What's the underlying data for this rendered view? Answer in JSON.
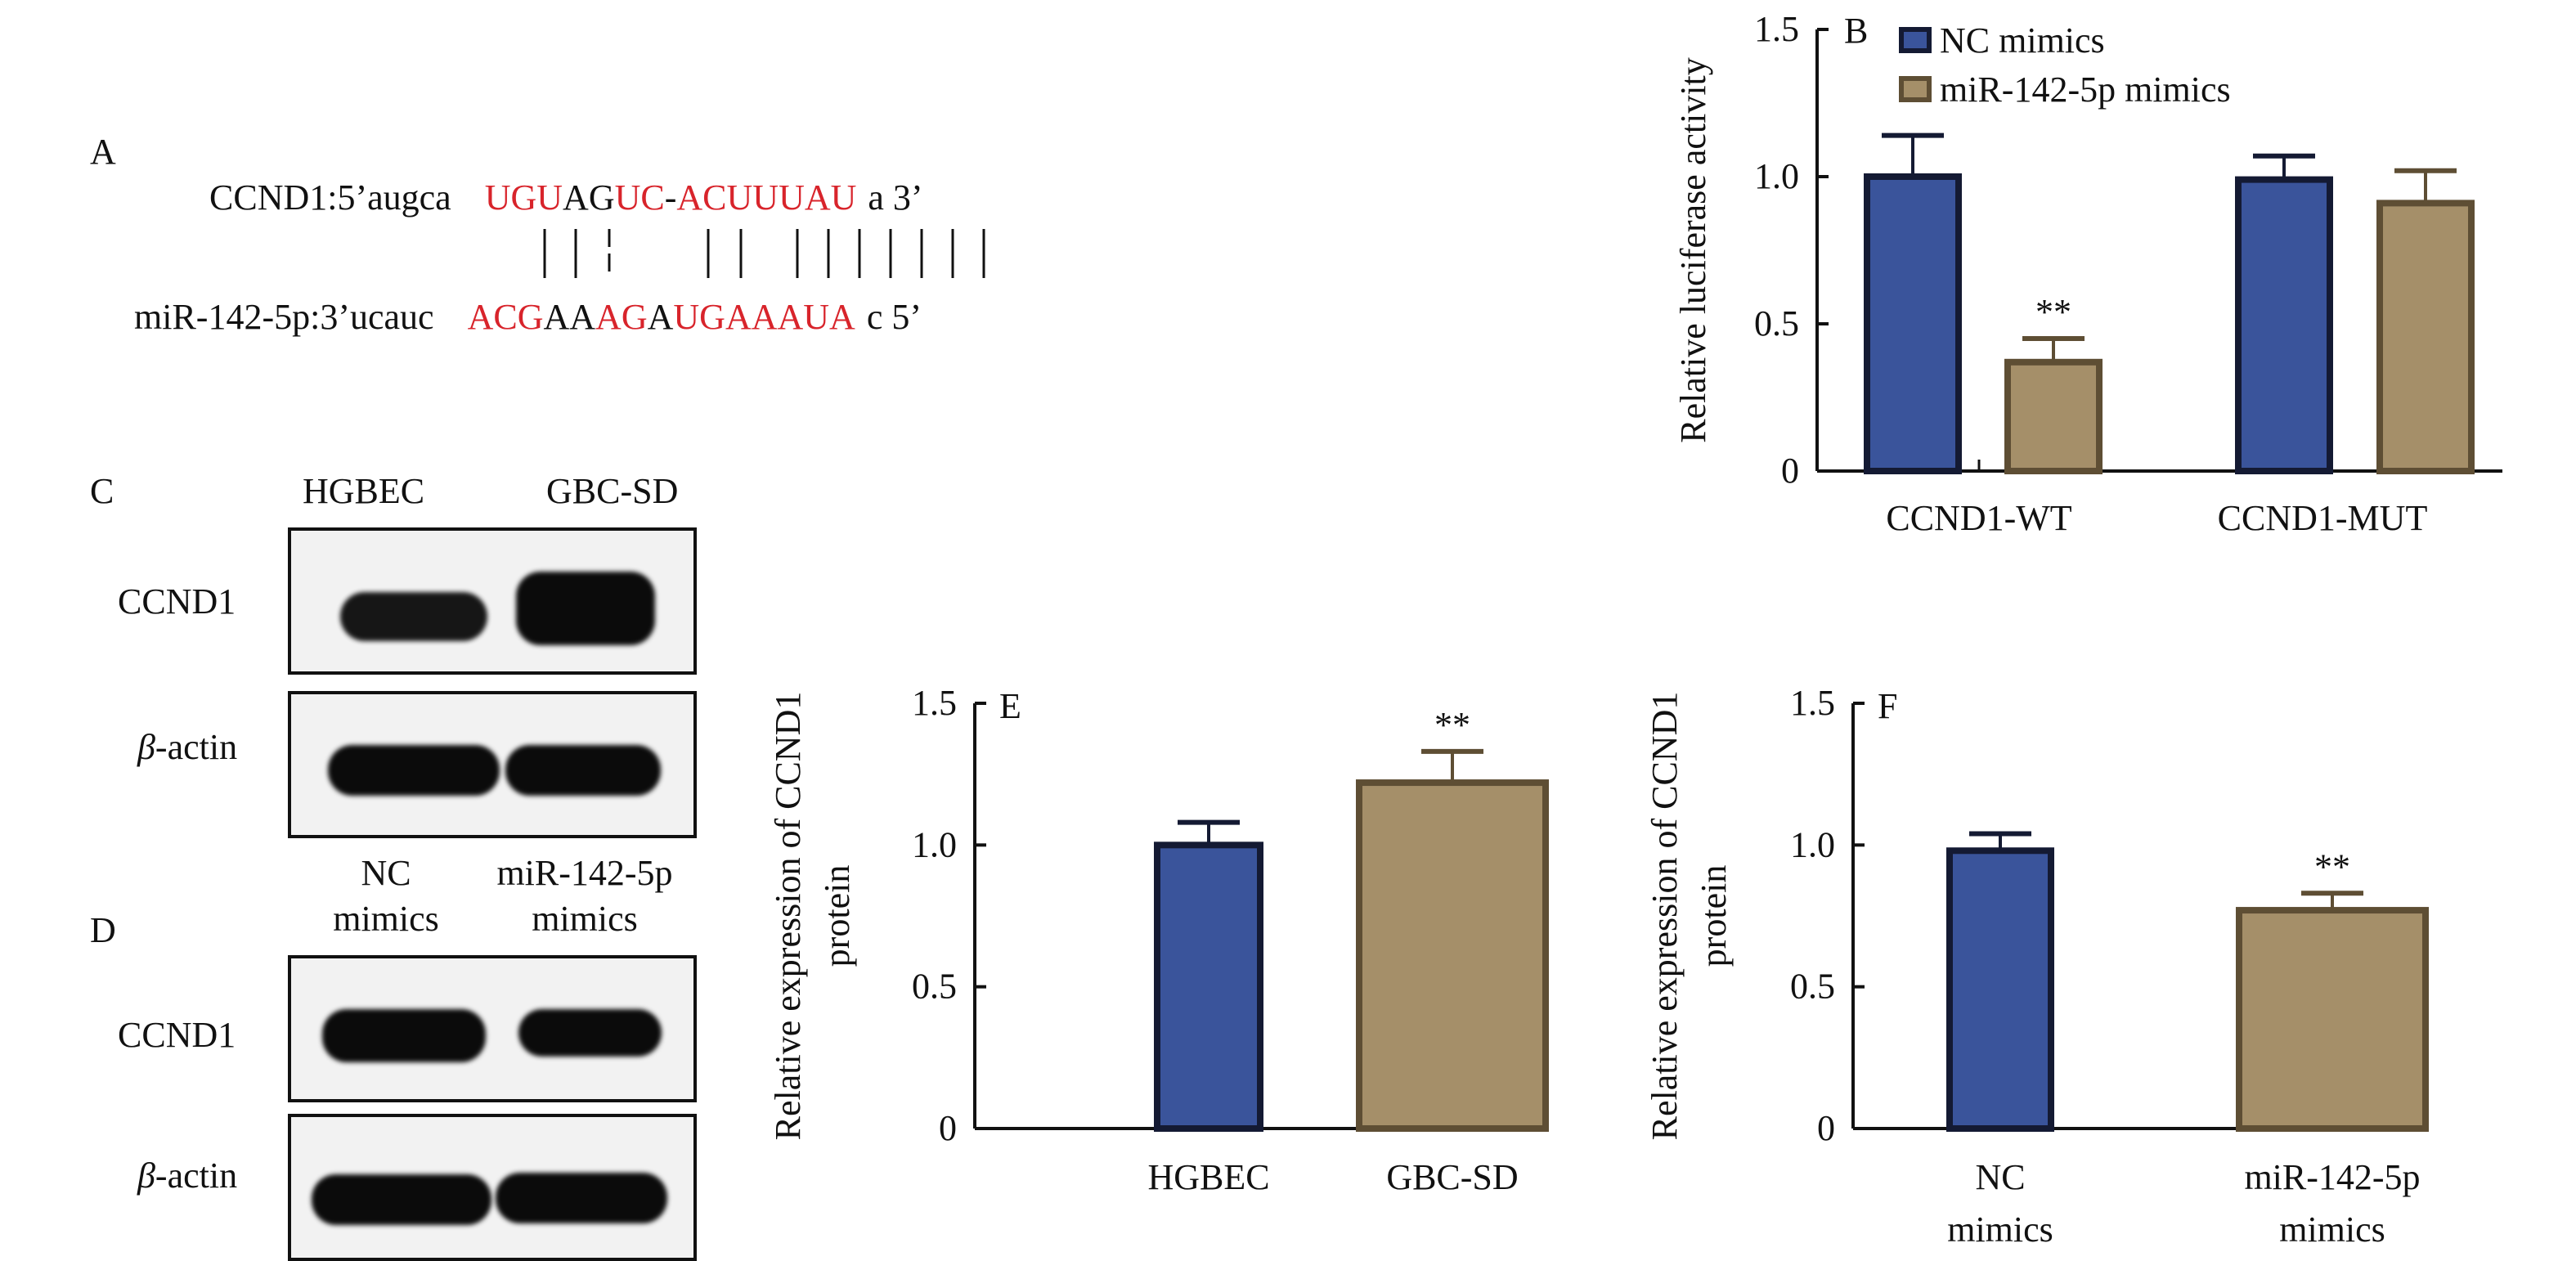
{
  "panel_a": {
    "label": "A",
    "target_prefix": "CCND1:5’augca",
    "target_segments": [
      {
        "text": "UGU",
        "red": true
      },
      {
        "text": "AG",
        "red": false
      },
      {
        "text": "UC",
        "red": true
      },
      {
        "text": "-",
        "red": false
      },
      {
        "text": "ACUUUAU",
        "red": true
      },
      {
        "text": "a 3’",
        "red": false
      }
    ],
    "mirna_prefix": "miR-142-5p:3’ucauc",
    "mirna_segments": [
      {
        "text": "ACG",
        "red": true
      },
      {
        "text": "AA",
        "red": false
      },
      {
        "text": "AG",
        "red": true
      },
      {
        "text": "A",
        "red": false
      },
      {
        "text": "UGAAAUA",
        "red": true
      },
      {
        "text": "c 5’",
        "red": false
      }
    ]
  },
  "panel_c": {
    "label": "C",
    "lanes": [
      "HGBEC",
      "GBC-SD"
    ],
    "rows": [
      "CCND1",
      "β-actin"
    ]
  },
  "panel_d": {
    "label": "D",
    "lanes": [
      [
        "NC",
        "mimics"
      ],
      [
        "miR-142-5p",
        "mimics"
      ]
    ],
    "rows": [
      "CCND1",
      "β-actin"
    ]
  },
  "colors": {
    "nc": "#3a549b",
    "nc_edge": "#141a33",
    "mir": "#a58f69",
    "mir_edge": "#5e4e34",
    "text": "#111111",
    "red": "#d8242b"
  },
  "chart_data": [
    {
      "id": "B",
      "type": "bar",
      "panel_label": "B",
      "title": "",
      "ylabel": "Relative luciferase activity",
      "xlabel": "",
      "ylim": [
        0,
        1.5
      ],
      "yticks": [
        0,
        0.5,
        1.0,
        1.5
      ],
      "ytick_labels": [
        "0",
        "0.5",
        "1.0",
        "1.5"
      ],
      "categories": [
        "CCND1-WT",
        "CCND1-MUT"
      ],
      "legend": {
        "position": "top",
        "entries": [
          "NC mimics",
          "miR-142-5p mimics"
        ]
      },
      "series": [
        {
          "name": "NC mimics",
          "values": [
            1.0,
            0.99
          ],
          "errors": [
            0.14,
            0.08
          ],
          "annotations": [
            "",
            ""
          ]
        },
        {
          "name": "miR-142-5p mimics",
          "values": [
            0.37,
            0.91
          ],
          "errors": [
            0.08,
            0.11
          ],
          "annotations": [
            "**",
            ""
          ]
        }
      ]
    },
    {
      "id": "E",
      "type": "bar",
      "panel_label": "E",
      "title": "",
      "ylabel": [
        "Relative expression of CCND1",
        "protein"
      ],
      "xlabel": "",
      "ylim": [
        0,
        1.5
      ],
      "yticks": [
        0,
        0.5,
        1.0,
        1.5
      ],
      "ytick_labels": [
        "0",
        "0.5",
        "1.0",
        "1.5"
      ],
      "categories": [
        [
          "HGBEC"
        ],
        [
          "GBC-SD"
        ]
      ],
      "series": [
        {
          "name": "expression",
          "values": [
            1.0,
            1.22
          ],
          "errors": [
            0.08,
            0.11
          ],
          "annotations": [
            "",
            "**"
          ]
        }
      ]
    },
    {
      "id": "F",
      "type": "bar",
      "panel_label": "F",
      "title": "",
      "ylabel": [
        "Relative expression of CCND1",
        "protein"
      ],
      "xlabel": "",
      "ylim": [
        0,
        1.5
      ],
      "yticks": [
        0,
        0.5,
        1.0,
        1.5
      ],
      "ytick_labels": [
        "0",
        "0.5",
        "1.0",
        "1.5"
      ],
      "categories": [
        [
          "NC",
          "mimics"
        ],
        [
          "miR-142-5p",
          "mimics"
        ]
      ],
      "series": [
        {
          "name": "expression",
          "values": [
            0.98,
            0.77
          ],
          "errors": [
            0.06,
            0.06
          ],
          "annotations": [
            "",
            "**"
          ]
        }
      ]
    }
  ]
}
